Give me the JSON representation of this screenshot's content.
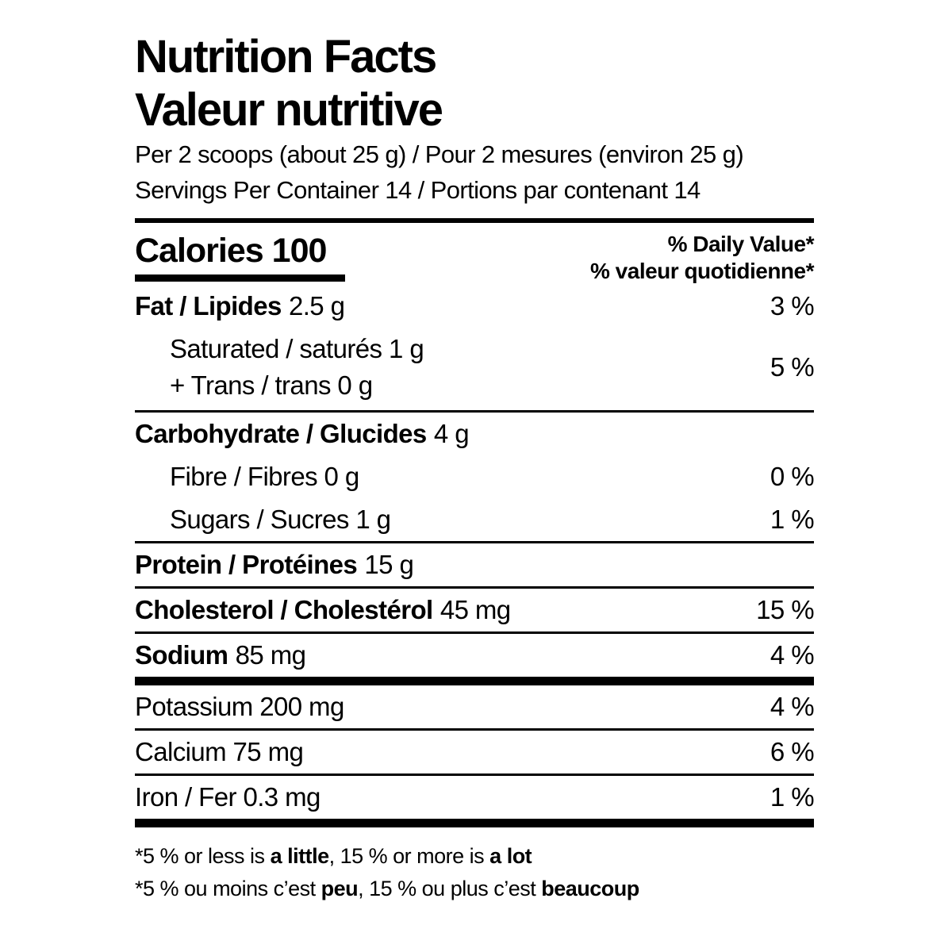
{
  "colors": {
    "text": "#000000",
    "background": "#ffffff",
    "rule": "#000000"
  },
  "header": {
    "title_en": "Nutrition Facts",
    "title_fr": "Valeur nutritive",
    "serving_line": "Per 2 scoops (about 25 g) / Pour 2 mesures (environ 25 g)",
    "servings_line": "Servings Per Container 14 / Portions par contenant 14"
  },
  "calories": {
    "label": "Calories",
    "value": "100"
  },
  "daily_value_header": {
    "en": "% Daily Value*",
    "fr": "% valeur quotidienne*"
  },
  "nutrients": {
    "fat": {
      "name": "Fat / Lipides",
      "amount": "2.5 g",
      "dv": "3 %"
    },
    "saturated": {
      "name": "Saturated / saturés 1 g"
    },
    "trans": {
      "name": "+ Trans / trans 0 g"
    },
    "saturated_trans_dv": "5 %",
    "carbohydrate": {
      "name": "Carbohydrate / Glucides",
      "amount": "4 g"
    },
    "fibre": {
      "name": "Fibre / Fibres 0 g",
      "dv": "0 %"
    },
    "sugars": {
      "name": "Sugars / Sucres 1 g",
      "dv": "1 %"
    },
    "protein": {
      "name": "Protein / Protéines",
      "amount": "15 g"
    },
    "cholesterol": {
      "name": "Cholesterol / Cholestérol",
      "amount": "45 mg",
      "dv": "15 %"
    },
    "sodium": {
      "name": "Sodium",
      "amount": "85 mg",
      "dv": "4 %"
    },
    "potassium": {
      "name": "Potassium 200 mg",
      "dv": "4 %"
    },
    "calcium": {
      "name": "Calcium 75 mg",
      "dv": "6 %"
    },
    "iron": {
      "name": "Iron / Fer 0.3 mg",
      "dv": "1 %"
    }
  },
  "footnotes": {
    "en": {
      "part1": "*5 % or less is ",
      "bold1": "a little",
      "part2": ", 15 % or more is ",
      "bold2": "a lot"
    },
    "fr": {
      "part1": "*5 % ou moins c’est ",
      "bold1": "peu",
      "part2": ", 15 % ou plus c’est ",
      "bold2": "beaucoup"
    }
  }
}
